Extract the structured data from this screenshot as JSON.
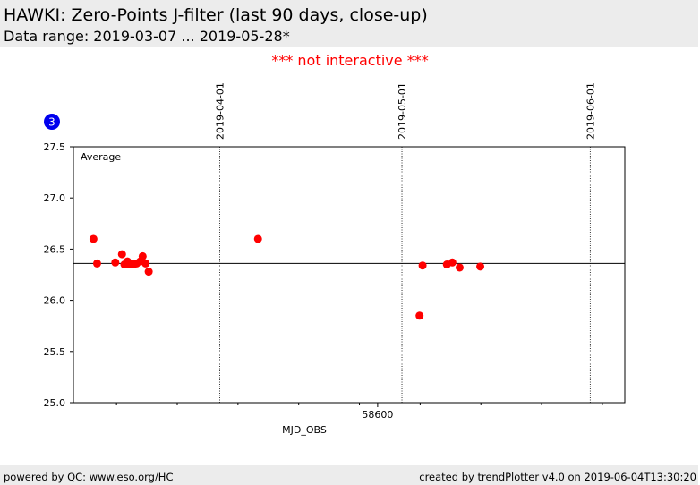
{
  "header": {
    "title": "HAWKI: Zero-Points J-filter (last 90 days, close-up)",
    "subtitle": "Data range: 2019-03-07 ... 2019-05-28*"
  },
  "notice": "*** not interactive ***",
  "footer": {
    "left": "powered by QC: www.eso.org/HC",
    "right": "created by trendPlotter v4.0 on 2019-06-04T13:30:20"
  },
  "colors": {
    "points": "#ff0000",
    "badge": "#0000ee",
    "notice": "#ff0000",
    "band": "#ececec"
  },
  "chart_data": {
    "type": "scatter",
    "xlabel": "MJD_OBS",
    "ylabel": "",
    "xlim": [
      58549.9,
      58640.7
    ],
    "ylim": [
      25.0,
      27.5
    ],
    "yticks": [
      25.0,
      25.5,
      26.0,
      26.5,
      27.0,
      27.5
    ],
    "ytick_labels": [
      "25.0",
      "25.5",
      "26.0",
      "26.5",
      "27.0",
      "27.5"
    ],
    "xticks_labeled": [
      {
        "x": 58600,
        "label": "58600"
      }
    ],
    "xticks_minor": [
      58557.0,
      58567.0,
      58577.0,
      58587.0,
      58597.0,
      58607.0,
      58617.0,
      58627.0,
      58637.0
    ],
    "date_markers": [
      {
        "x": 58574.0,
        "label": "2019-04-01"
      },
      {
        "x": 58604.0,
        "label": "2019-05-01"
      },
      {
        "x": 58635.0,
        "label": "2019-06-01"
      }
    ],
    "average": 26.36,
    "average_label": "Average",
    "badge": "3",
    "series": [
      {
        "marker": "circle",
        "color": "#ff0000",
        "points": [
          {
            "x": 58553.2,
            "y": 26.6
          },
          {
            "x": 58553.8,
            "y": 26.36
          },
          {
            "x": 58556.8,
            "y": 26.37
          },
          {
            "x": 58557.9,
            "y": 26.45
          },
          {
            "x": 58558.3,
            "y": 26.35
          },
          {
            "x": 58558.8,
            "y": 26.38
          },
          {
            "x": 58558.9,
            "y": 26.35
          },
          {
            "x": 58559.3,
            "y": 26.36
          },
          {
            "x": 58559.8,
            "y": 26.35
          },
          {
            "x": 58560.3,
            "y": 26.36
          },
          {
            "x": 58560.9,
            "y": 26.38
          },
          {
            "x": 58561.3,
            "y": 26.43
          },
          {
            "x": 58561.8,
            "y": 26.36
          },
          {
            "x": 58562.3,
            "y": 26.28
          },
          {
            "x": 58580.3,
            "y": 26.6
          },
          {
            "x": 58606.9,
            "y": 25.85
          },
          {
            "x": 58607.4,
            "y": 26.34
          },
          {
            "x": 58611.4,
            "y": 26.35
          },
          {
            "x": 58612.3,
            "y": 26.37
          },
          {
            "x": 58613.5,
            "y": 26.32
          },
          {
            "x": 58616.9,
            "y": 26.33
          }
        ]
      }
    ]
  }
}
